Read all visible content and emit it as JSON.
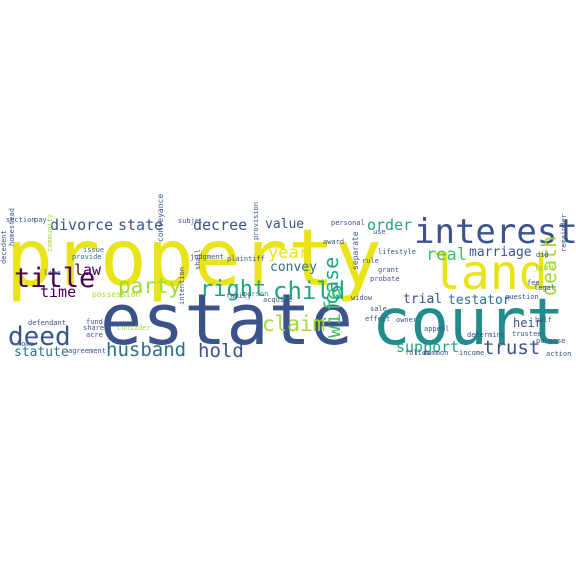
{
  "palette": {
    "yellow": "#e8e419",
    "lime": "#a2da37",
    "green": "#43bf71",
    "teal": "#21a585",
    "cyan": "#228c8d",
    "blue": "#2d708e",
    "indigo": "#3b528b",
    "purple": "#472d7b",
    "dark": "#440154"
  },
  "words": [
    {
      "id": "property",
      "text": "property",
      "color": "yellow"
    },
    {
      "id": "estate",
      "text": "estate",
      "color": "indigo"
    },
    {
      "id": "court",
      "text": "court",
      "color": "cyan"
    },
    {
      "id": "land",
      "text": "land",
      "color": "yellow"
    },
    {
      "id": "interest",
      "text": "interest",
      "color": "indigo"
    },
    {
      "id": "title",
      "text": "title",
      "color": "dark"
    },
    {
      "id": "deed",
      "text": "deed",
      "color": "indigo"
    },
    {
      "id": "child",
      "text": "child",
      "color": "teal"
    },
    {
      "id": "right",
      "text": "right",
      "color": "teal"
    },
    {
      "id": "party",
      "text": "party",
      "color": "lime"
    },
    {
      "id": "claim",
      "text": "claim",
      "color": "lime"
    },
    {
      "id": "husband",
      "text": "husband",
      "color": "blue"
    },
    {
      "id": "hold",
      "text": "hold",
      "color": "indigo"
    },
    {
      "id": "trust",
      "text": "trust",
      "color": "indigo"
    },
    {
      "id": "wife",
      "text": "wife",
      "color": "green"
    },
    {
      "id": "case",
      "text": "case",
      "color": "teal"
    },
    {
      "id": "death",
      "text": "death",
      "color": "lime"
    },
    {
      "id": "divorce",
      "text": "divorce",
      "color": "indigo"
    },
    {
      "id": "state",
      "text": "state",
      "color": "indigo"
    },
    {
      "id": "decree",
      "text": "decree",
      "color": "indigo"
    },
    {
      "id": "law",
      "text": "law",
      "color": "dark"
    },
    {
      "id": "time",
      "text": "time",
      "color": "dark"
    },
    {
      "id": "year",
      "text": "year",
      "color": "yellow"
    },
    {
      "id": "value",
      "text": "value",
      "color": "indigo"
    },
    {
      "id": "order",
      "text": "order",
      "color": "teal"
    },
    {
      "id": "real",
      "text": "real",
      "color": "green"
    },
    {
      "id": "marriage",
      "text": "marriage",
      "color": "indigo"
    },
    {
      "id": "support",
      "text": "support",
      "color": "teal"
    },
    {
      "id": "convey",
      "text": "convey",
      "color": "blue"
    },
    {
      "id": "trial",
      "text": "trial",
      "color": "indigo"
    },
    {
      "id": "testator",
      "text": "testator",
      "color": "blue"
    },
    {
      "id": "heir",
      "text": "heir",
      "color": "indigo"
    },
    {
      "id": "statute",
      "text": "statute",
      "color": "blue"
    },
    {
      "id": "section",
      "text": "section",
      "color": "indigo"
    },
    {
      "id": "pay",
      "text": "pay",
      "color": "indigo"
    },
    {
      "id": "subject",
      "text": "subje...",
      "color": "indigo"
    },
    {
      "id": "personal",
      "text": "personal",
      "color": "indigo"
    },
    {
      "id": "use",
      "text": "use",
      "color": "indigo"
    },
    {
      "id": "award",
      "text": "award",
      "color": "indigo"
    },
    {
      "id": "issue",
      "text": "issue",
      "color": "blue"
    },
    {
      "id": "provide",
      "text": "provide",
      "color": "blue"
    },
    {
      "id": "plaintiff",
      "text": "plaintiff",
      "color": "indigo"
    },
    {
      "id": "judgment",
      "text": "judgment",
      "color": "indigo"
    },
    {
      "id": "conveyance",
      "text": "conveyance",
      "color": "indigo"
    },
    {
      "id": "possession",
      "text": "possession",
      "color": "lime"
    },
    {
      "id": "agreement",
      "text": "agreement",
      "color": "indigo"
    },
    {
      "id": "consider",
      "text": "consider",
      "color": "lime"
    },
    {
      "id": "common",
      "text": "common",
      "color": "indigo"
    },
    {
      "id": "income",
      "text": "income",
      "color": "indigo"
    },
    {
      "id": "widow",
      "text": "widow",
      "color": "indigo"
    },
    {
      "id": "probate",
      "text": "probate",
      "color": "indigo"
    },
    {
      "id": "grant",
      "text": "grant",
      "color": "indigo"
    },
    {
      "id": "rule",
      "text": "rule",
      "color": "indigo"
    },
    {
      "id": "trustee",
      "text": "trustee",
      "color": "indigo"
    },
    {
      "id": "legal",
      "text": "legal",
      "color": "indigo"
    },
    {
      "id": "joint",
      "text": "joint",
      "color": "lime"
    },
    {
      "id": "fee",
      "text": "fee",
      "color": "indigo"
    },
    {
      "id": "half",
      "text": "half",
      "color": "indigo"
    },
    {
      "id": "purpose",
      "text": "purpose",
      "color": "indigo"
    },
    {
      "id": "person",
      "text": "person",
      "color": "teal"
    },
    {
      "id": "family",
      "text": "family",
      "color": "indigo"
    },
    {
      "id": "homestead",
      "text": "homestead",
      "color": "indigo"
    },
    {
      "id": "decedent",
      "text": "decedent",
      "color": "indigo"
    },
    {
      "id": "live",
      "text": "live",
      "color": "indigo"
    },
    {
      "id": "home",
      "text": "home",
      "color": "indigo"
    },
    {
      "id": "acre",
      "text": "acre",
      "color": "indigo"
    },
    {
      "id": "defendant",
      "text": "defendant",
      "color": "indigo"
    },
    {
      "id": "fund",
      "text": "fund",
      "color": "indigo"
    },
    {
      "id": "share",
      "text": "share",
      "color": "indigo"
    },
    {
      "id": "follow",
      "text": "follow",
      "color": "indigo"
    },
    {
      "id": "effect",
      "text": "effect",
      "color": "indigo"
    },
    {
      "id": "owner",
      "text": "owner",
      "color": "indigo"
    },
    {
      "id": "appeal",
      "text": "appeal",
      "color": "indigo"
    },
    {
      "id": "determine",
      "text": "determine",
      "color": "indigo"
    },
    {
      "id": "did",
      "text": "did",
      "color": "indigo"
    },
    {
      "id": "lifestyle",
      "text": "lifestyle",
      "color": "indigo"
    },
    {
      "id": "sale",
      "text": "sale",
      "color": "indigo"
    },
    {
      "id": "acquire",
      "text": "acquire",
      "color": "indigo"
    },
    {
      "id": "separate",
      "text": "separate",
      "color": "indigo"
    },
    {
      "id": "intention",
      "text": "intention",
      "color": "indigo"
    },
    {
      "id": "shall",
      "text": "shall",
      "color": "indigo"
    },
    {
      "id": "provision",
      "text": "provision",
      "color": "indigo"
    },
    {
      "id": "question",
      "text": "question",
      "color": "indigo"
    },
    {
      "id": "remainder",
      "text": "remainder",
      "color": "indigo"
    },
    {
      "id": "community",
      "text": "community",
      "color": "lime"
    },
    {
      "id": "action",
      "text": "action",
      "color": "indigo"
    }
  ]
}
